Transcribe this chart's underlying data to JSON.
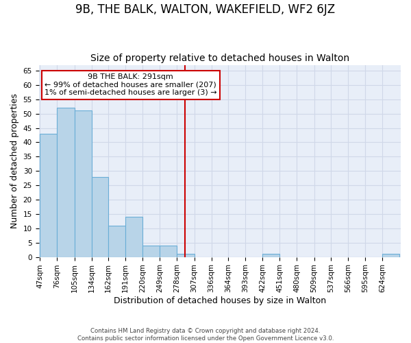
{
  "title": "9B, THE BALK, WALTON, WAKEFIELD, WF2 6JZ",
  "subtitle": "Size of property relative to detached houses in Walton",
  "bar_values": [
    43,
    52,
    51,
    28,
    11,
    14,
    4,
    4,
    1,
    0,
    0,
    0,
    0,
    1,
    0,
    0,
    0,
    0,
    0,
    0,
    1
  ],
  "bin_edges": [
    47,
    76,
    105,
    134,
    162,
    191,
    220,
    249,
    278,
    307,
    336,
    364,
    393,
    422,
    451,
    480,
    509,
    537,
    566,
    595,
    624,
    653
  ],
  "x_tick_labels": [
    "47sqm",
    "76sqm",
    "105sqm",
    "134sqm",
    "162sqm",
    "191sqm",
    "220sqm",
    "249sqm",
    "278sqm",
    "307sqm",
    "336sqm",
    "364sqm",
    "393sqm",
    "422sqm",
    "451sqm",
    "480sqm",
    "509sqm",
    "537sqm",
    "566sqm",
    "595sqm",
    "624sqm"
  ],
  "ylabel": "Number of detached properties",
  "xlabel": "Distribution of detached houses by size in Walton",
  "ylim": [
    0,
    67
  ],
  "yticks": [
    0,
    5,
    10,
    15,
    20,
    25,
    30,
    35,
    40,
    45,
    50,
    55,
    60,
    65
  ],
  "bar_color": "#b8d4e8",
  "bar_edge_color": "#6aaed6",
  "vline_x": 291,
  "vline_color": "#cc0000",
  "annotation_line1": "9B THE BALK: 291sqm",
  "annotation_line2": "← 99% of detached houses are smaller (207)",
  "annotation_line3": "1% of semi-detached houses are larger (3) →",
  "annotation_box_color": "#ffffff",
  "annotation_border_color": "#cc0000",
  "grid_color": "#d0d8e8",
  "background_color": "#e8eef8",
  "footer_text": "Contains HM Land Registry data © Crown copyright and database right 2024.\nContains public sector information licensed under the Open Government Licence v3.0.",
  "title_fontsize": 12,
  "subtitle_fontsize": 10,
  "tick_fontsize": 7.5,
  "ylabel_fontsize": 9,
  "xlabel_fontsize": 9,
  "annotation_fontsize": 8
}
